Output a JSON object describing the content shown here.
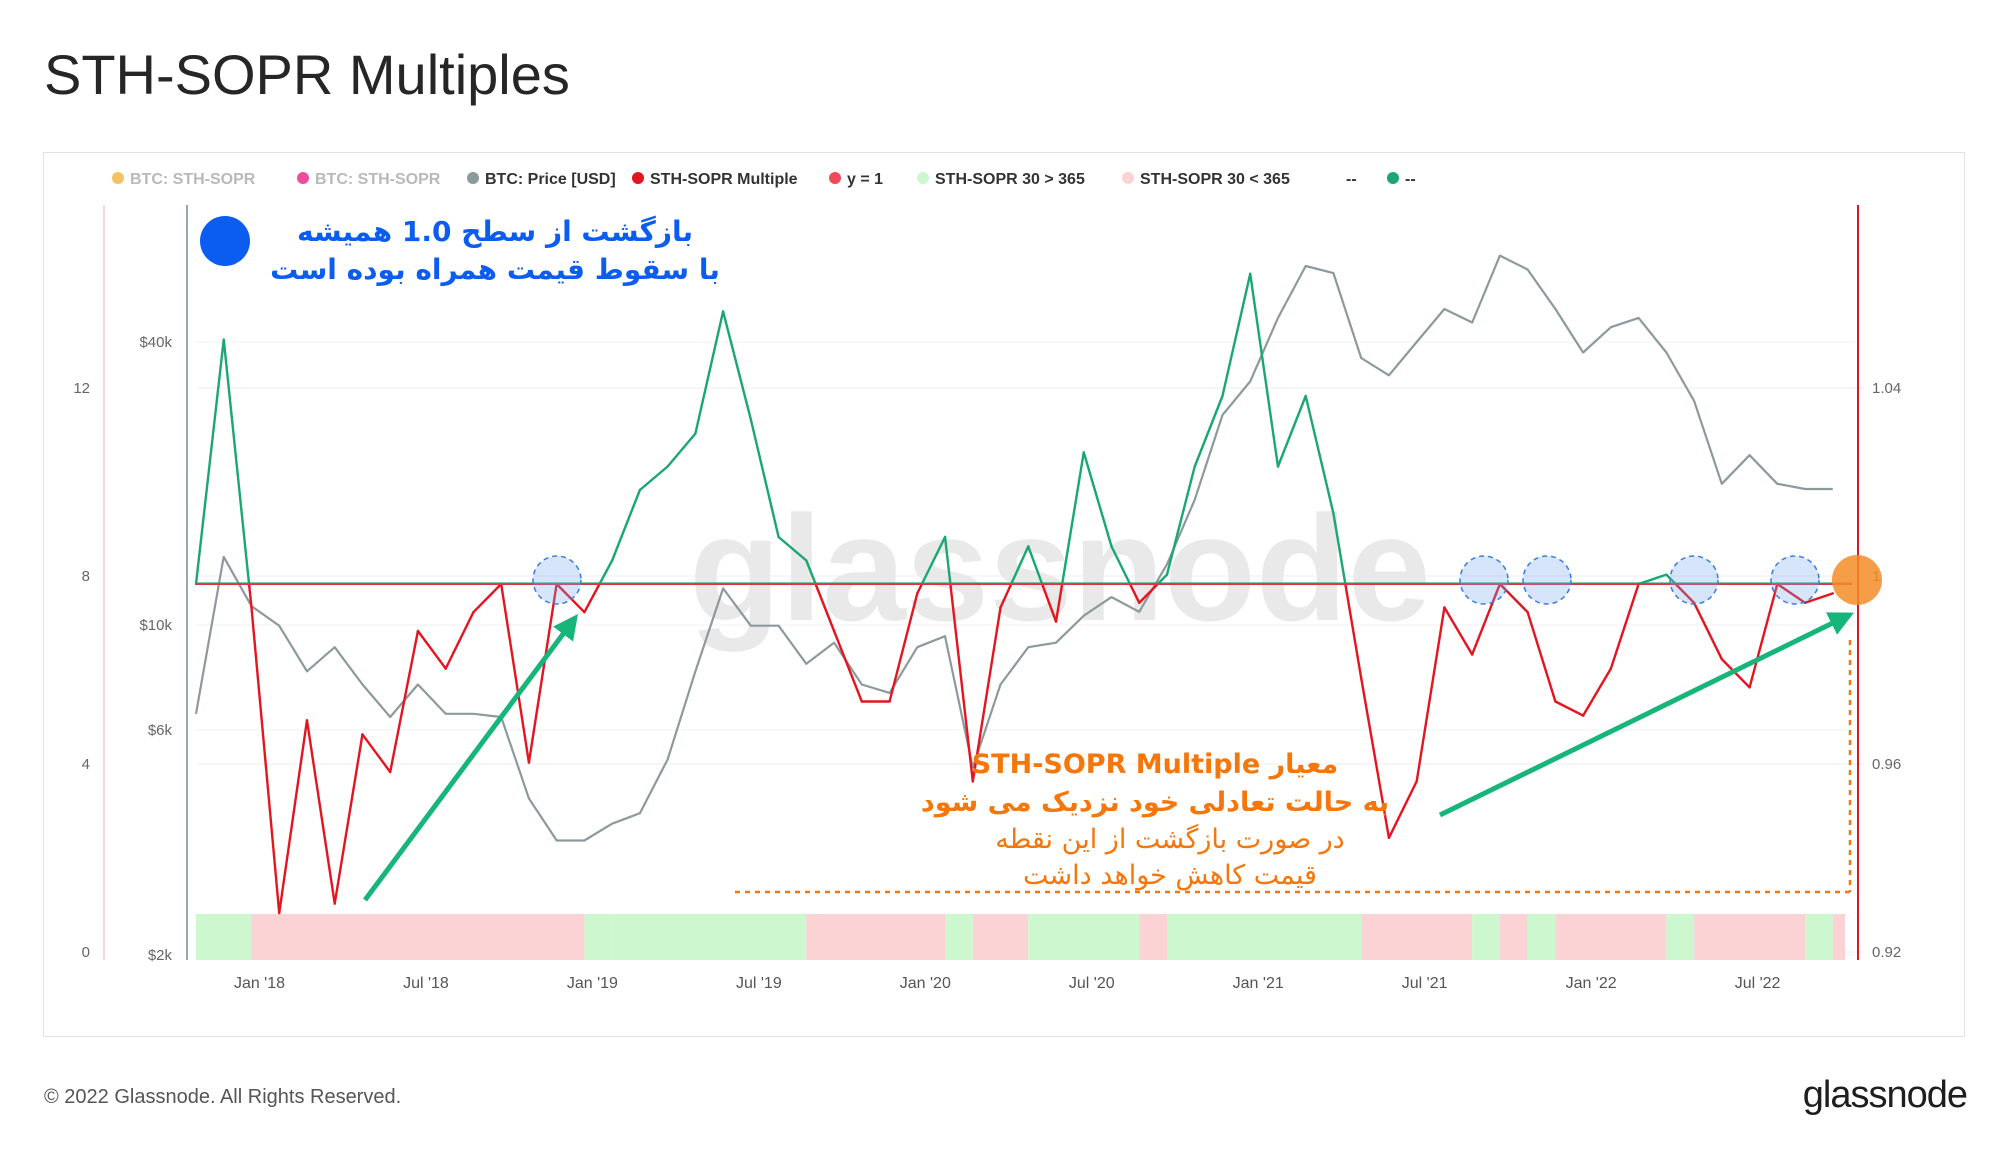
{
  "page": {
    "title": "STH-SOPR Multiples",
    "copyright": "© 2022 Glassnode. All Rights Reserved.",
    "brand": "glassnode",
    "watermark": "glassnode"
  },
  "chart_data": {
    "type": "line",
    "legend": [
      {
        "label": "BTC: STH-SOPR",
        "color": "#f2b64a",
        "muted": true
      },
      {
        "label": "BTC: STH-SOPR",
        "color": "#e8308a",
        "muted": true
      },
      {
        "label": "BTC: Price [USD]",
        "color": "#8c9a9d",
        "muted": false
      },
      {
        "label": "STH-SOPR Multiple",
        "color": "#e3151f",
        "muted": false
      },
      {
        "label": "y = 1",
        "color": "#f04a5a",
        "muted": false
      },
      {
        "label": "STH-SOPR 30 > 365",
        "color": "#cdf7cf",
        "muted": false
      },
      {
        "label": "STH-SOPR 30 < 365",
        "color": "#fbd3d5",
        "muted": false
      },
      {
        "label": "--",
        "color": "",
        "muted": false
      },
      {
        "label": "--",
        "color": "#1aa772",
        "muted": false
      }
    ],
    "x_ticks": [
      "Jan '18",
      "Jul '18",
      "Jan '19",
      "Jul '19",
      "Jan '20",
      "Jul '20",
      "Jan '21",
      "Jul '21",
      "Jan '22",
      "Jul '22"
    ],
    "x_range": [
      "2017-11",
      "2022-10"
    ],
    "left_axis_ticks": [
      "12",
      "8",
      "4",
      "0"
    ],
    "price_axis_ticks": [
      "$40k",
      "$10k",
      "$6k",
      "$2k"
    ],
    "price_axis_scale": "log",
    "right_axis_ticks": [
      "1.04",
      "1",
      "0.96",
      "0.92"
    ],
    "reference_line": {
      "label": "y = 1",
      "value": 1
    },
    "series": [
      {
        "name": "BTC: Price [USD]",
        "color": "#8c9a9d",
        "points": [
          [
            "2017-11",
            6500
          ],
          [
            "2017-12",
            14000
          ],
          [
            "2018-01",
            11000
          ],
          [
            "2018-02",
            10000
          ],
          [
            "2018-03",
            8000
          ],
          [
            "2018-04",
            9000
          ],
          [
            "2018-05",
            7500
          ],
          [
            "2018-06",
            6400
          ],
          [
            "2018-07",
            7500
          ],
          [
            "2018-08",
            6500
          ],
          [
            "2018-09",
            6500
          ],
          [
            "2018-10",
            6400
          ],
          [
            "2018-11",
            4300
          ],
          [
            "2018-12",
            3500
          ],
          [
            "2019-01",
            3500
          ],
          [
            "2019-02",
            3800
          ],
          [
            "2019-03",
            4000
          ],
          [
            "2019-04",
            5200
          ],
          [
            "2019-05",
            8000
          ],
          [
            "2019-06",
            12000
          ],
          [
            "2019-07",
            10000
          ],
          [
            "2019-08",
            10000
          ],
          [
            "2019-09",
            8300
          ],
          [
            "2019-10",
            9200
          ],
          [
            "2019-11",
            7500
          ],
          [
            "2019-12",
            7200
          ],
          [
            "2020-01",
            9000
          ],
          [
            "2020-02",
            9500
          ],
          [
            "2020-03",
            5000
          ],
          [
            "2020-04",
            7500
          ],
          [
            "2020-05",
            9000
          ],
          [
            "2020-06",
            9200
          ],
          [
            "2020-07",
            10500
          ],
          [
            "2020-08",
            11500
          ],
          [
            "2020-09",
            10700
          ],
          [
            "2020-10",
            13500
          ],
          [
            "2020-11",
            18500
          ],
          [
            "2020-12",
            28000
          ],
          [
            "2021-01",
            33000
          ],
          [
            "2021-02",
            45000
          ],
          [
            "2021-03",
            58000
          ],
          [
            "2021-04",
            56000
          ],
          [
            "2021-05",
            37000
          ],
          [
            "2021-06",
            34000
          ],
          [
            "2021-07",
            40000
          ],
          [
            "2021-08",
            47000
          ],
          [
            "2021-09",
            44000
          ],
          [
            "2021-10",
            61000
          ],
          [
            "2021-11",
            57000
          ],
          [
            "2021-12",
            47000
          ],
          [
            "2022-01",
            38000
          ],
          [
            "2022-02",
            43000
          ],
          [
            "2022-03",
            45000
          ],
          [
            "2022-04",
            38000
          ],
          [
            "2022-05",
            30000
          ],
          [
            "2022-06",
            20000
          ],
          [
            "2022-07",
            23000
          ],
          [
            "2022-08",
            20000
          ],
          [
            "2022-09",
            19500
          ],
          [
            "2022-10",
            19500
          ]
        ]
      },
      {
        "name": "STH-SOPR Multiple",
        "color": "#e3151f",
        "above_one_color": "#1aa772",
        "points": [
          [
            "2017-11",
            8.0
          ],
          [
            "2017-12",
            13.2
          ],
          [
            "2018-01",
            7.5
          ],
          [
            "2018-02",
            1.0
          ],
          [
            "2018-03",
            5.1
          ],
          [
            "2018-04",
            1.2
          ],
          [
            "2018-05",
            4.8
          ],
          [
            "2018-06",
            4.0
          ],
          [
            "2018-07",
            7.0
          ],
          [
            "2018-08",
            6.2
          ],
          [
            "2018-09",
            7.4
          ],
          [
            "2018-10",
            8.0
          ],
          [
            "2018-11",
            4.2
          ],
          [
            "2018-12",
            8.0
          ],
          [
            "2019-01",
            7.4
          ],
          [
            "2019-02",
            8.5
          ],
          [
            "2019-03",
            10.0
          ],
          [
            "2019-04",
            10.5
          ],
          [
            "2019-05",
            11.2
          ],
          [
            "2019-06",
            13.8
          ],
          [
            "2019-07",
            11.5
          ],
          [
            "2019-08",
            9.0
          ],
          [
            "2019-09",
            8.5
          ],
          [
            "2019-10",
            7.0
          ],
          [
            "2019-11",
            5.5
          ],
          [
            "2019-12",
            5.5
          ],
          [
            "2020-01",
            7.8
          ],
          [
            "2020-02",
            9.0
          ],
          [
            "2020-03",
            3.8
          ],
          [
            "2020-04",
            7.5
          ],
          [
            "2020-05",
            8.8
          ],
          [
            "2020-06",
            7.2
          ],
          [
            "2020-07",
            10.8
          ],
          [
            "2020-08",
            8.8
          ],
          [
            "2020-09",
            7.6
          ],
          [
            "2020-10",
            8.2
          ],
          [
            "2020-11",
            10.5
          ],
          [
            "2020-12",
            12.0
          ],
          [
            "2021-01",
            14.6
          ],
          [
            "2021-02",
            10.5
          ],
          [
            "2021-03",
            12.0
          ],
          [
            "2021-04",
            9.5
          ],
          [
            "2021-05",
            6.0
          ],
          [
            "2021-06",
            2.6
          ],
          [
            "2021-07",
            3.8
          ],
          [
            "2021-08",
            7.5
          ],
          [
            "2021-09",
            6.5
          ],
          [
            "2021-10",
            8.0
          ],
          [
            "2021-11",
            7.4
          ],
          [
            "2021-12",
            5.5
          ],
          [
            "2022-01",
            5.2
          ],
          [
            "2022-02",
            6.2
          ],
          [
            "2022-03",
            8.0
          ],
          [
            "2022-04",
            8.2
          ],
          [
            "2022-05",
            7.6
          ],
          [
            "2022-06",
            6.4
          ],
          [
            "2022-07",
            5.8
          ],
          [
            "2022-08",
            8.0
          ],
          [
            "2022-09",
            7.6
          ],
          [
            "2022-10",
            7.8
          ]
        ]
      }
    ],
    "regime_bands": [
      {
        "start": "2017-11",
        "end": "2018-01",
        "state": "30 > 365"
      },
      {
        "start": "2018-01",
        "end": "2019-01",
        "state": "30 < 365"
      },
      {
        "start": "2019-01",
        "end": "2019-02",
        "state": "30 > 365"
      },
      {
        "start": "2019-02",
        "end": "2019-09",
        "state": "30 > 365"
      },
      {
        "start": "2019-09",
        "end": "2020-02",
        "state": "30 < 365"
      },
      {
        "start": "2020-02",
        "end": "2020-03",
        "state": "30 > 365"
      },
      {
        "start": "2020-03",
        "end": "2020-05",
        "state": "30 < 365"
      },
      {
        "start": "2020-05",
        "end": "2020-09",
        "state": "30 > 365"
      },
      {
        "start": "2020-09",
        "end": "2020-10",
        "state": "30 < 365"
      },
      {
        "start": "2020-10",
        "end": "2021-05",
        "state": "30 > 365"
      },
      {
        "start": "2021-05",
        "end": "2021-09",
        "state": "30 < 365"
      },
      {
        "start": "2021-09",
        "end": "2021-10",
        "state": "30 > 365"
      },
      {
        "start": "2021-10",
        "end": "2021-11",
        "state": "30 < 365"
      },
      {
        "start": "2021-11",
        "end": "2021-12",
        "state": "30 > 365"
      },
      {
        "start": "2021-12",
        "end": "2022-04",
        "state": "30 < 365"
      },
      {
        "start": "2022-04",
        "end": "2022-05",
        "state": "30 > 365"
      },
      {
        "start": "2022-05",
        "end": "2022-09",
        "state": "30 < 365"
      },
      {
        "start": "2022-09",
        "end": "2022-10",
        "state": "30 > 365"
      },
      {
        "start": "2022-10",
        "end": "2022-11",
        "state": "30 < 365"
      }
    ],
    "annotations": {
      "top_note": [
        "بازگشت از سطح 1.0 همیشه",
        "با سقوط قیمت همراه بوده است"
      ],
      "bottom_note_bold": [
        "معیار STH-SOPR Multiple",
        "به حالت تعادلی خود نزدیک می شود"
      ],
      "bottom_note": [
        "در صورت بازگشت از این نقطه",
        "قیمت کاهش خواهد داشت"
      ],
      "highlighted_dates": [
        "2018-11",
        "2021-09",
        "2021-11",
        "2022-04",
        "2022-08"
      ],
      "current_point_date": "2022-10"
    },
    "colors": {
      "green_line": "#1aa772",
      "red_line": "#e3151f",
      "price": "#8c9a9d",
      "band_green": "#cdf7cf",
      "band_red": "#fbd3d5",
      "annotation_blue": "#0a5df0",
      "annotation_orange": "#f5760a",
      "arrow_green": "#16b57a"
    }
  }
}
